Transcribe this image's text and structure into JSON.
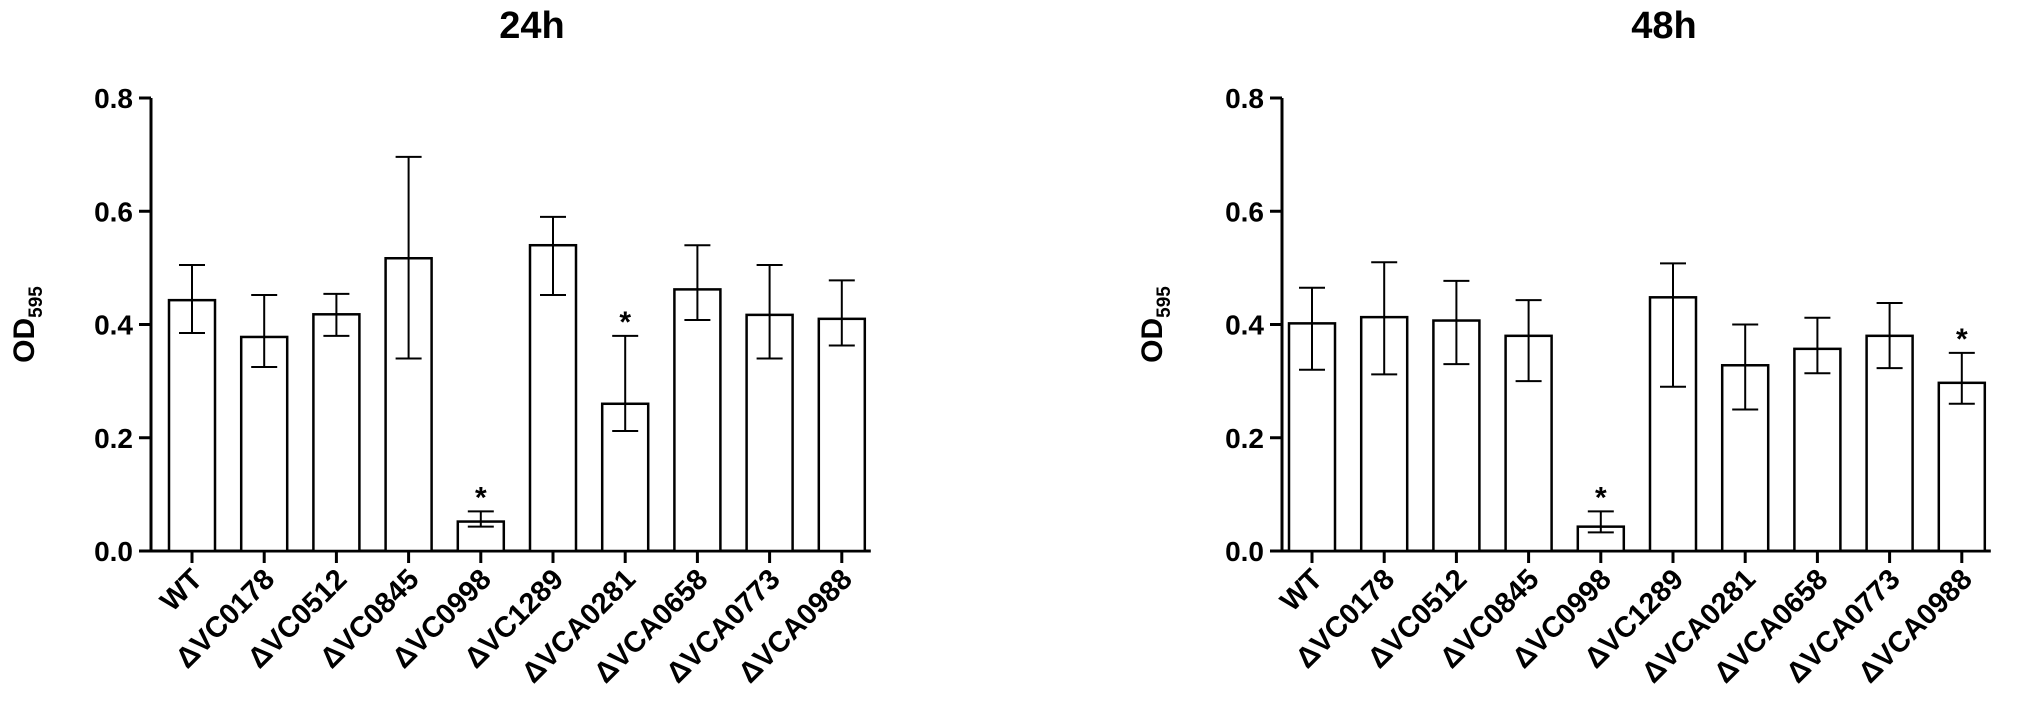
{
  "chart_data": [
    {
      "type": "bar",
      "title": "24h",
      "ylabel_main": "OD",
      "ylabel_sub": "595",
      "ylim": [
        0,
        0.8
      ],
      "yticks": [
        "0.0",
        "0.2",
        "0.4",
        "0.6",
        "0.8"
      ],
      "categories": [
        "WT",
        "ΔVC0178",
        "ΔVC0512",
        "ΔVC0845",
        "ΔVC0998",
        "ΔVC1289",
        "ΔVCA0281",
        "ΔVCA0658",
        "ΔVCA0773",
        "ΔVCA0988"
      ],
      "values": [
        0.443,
        0.378,
        0.418,
        0.517,
        0.052,
        0.54,
        0.26,
        0.462,
        0.417,
        0.41
      ],
      "err_upper": [
        0.505,
        0.452,
        0.454,
        0.696,
        0.07,
        0.59,
        0.38,
        0.54,
        0.505,
        0.478
      ],
      "err_lower": [
        0.385,
        0.325,
        0.38,
        0.34,
        0.043,
        0.452,
        0.212,
        0.408,
        0.34,
        0.363
      ],
      "significant": [
        false,
        false,
        false,
        false,
        true,
        false,
        true,
        false,
        false,
        false
      ],
      "marker": "*"
    },
    {
      "type": "bar",
      "title": "48h",
      "ylabel_main": "OD",
      "ylabel_sub": "595",
      "ylim": [
        0,
        0.8
      ],
      "yticks": [
        "0.0",
        "0.2",
        "0.4",
        "0.6",
        "0.8"
      ],
      "categories": [
        "WT",
        "ΔVC0178",
        "ΔVC0512",
        "ΔVC0845",
        "ΔVC0998",
        "ΔVC1289",
        "ΔVCA0281",
        "ΔVCA0658",
        "ΔVCA0773",
        "ΔVCA0988"
      ],
      "values": [
        0.402,
        0.413,
        0.407,
        0.38,
        0.043,
        0.448,
        0.328,
        0.357,
        0.38,
        0.297
      ],
      "err_upper": [
        0.465,
        0.51,
        0.477,
        0.443,
        0.07,
        0.508,
        0.4,
        0.412,
        0.438,
        0.35
      ],
      "err_lower": [
        0.32,
        0.312,
        0.33,
        0.3,
        0.033,
        0.29,
        0.25,
        0.314,
        0.323,
        0.26
      ],
      "significant": [
        false,
        false,
        false,
        false,
        true,
        false,
        false,
        false,
        false,
        true
      ],
      "marker": "*"
    }
  ]
}
